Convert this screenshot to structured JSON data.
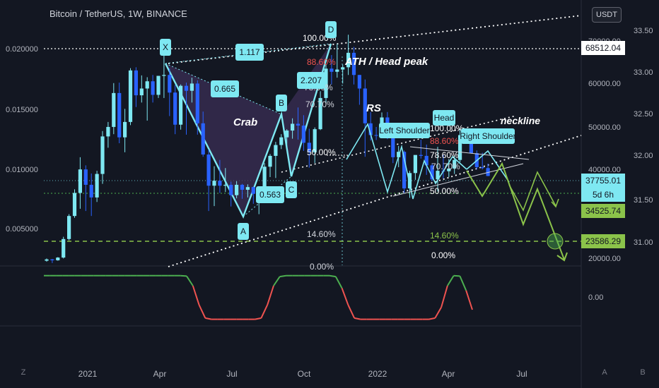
{
  "header": {
    "title": "Bitcoin / TetherUS, 1W, BINANCE",
    "currency": "USDT"
  },
  "corner": {
    "left": "Z",
    "right_a": "A",
    "right_b": "B"
  },
  "colors": {
    "background": "#131722",
    "up": "#7ee8f2",
    "down": "#2962ff",
    "pattern_fill": "#3b2f55",
    "crab_line": "#7ee8f2",
    "green_arrow": "#8bc34a",
    "indicator_up": "#4caf50",
    "indicator_down": "#ef5350",
    "fib_red": "#ef5350"
  },
  "chart_data": [
    {
      "type": "candlestick",
      "title": "Bitcoin / TetherUS, 1W, BINANCE",
      "x_tick_labels": [
        "2021",
        "Apr",
        "Jul",
        "Oct",
        "2022",
        "Apr",
        "Jul"
      ],
      "y_left_ticks": [
        "0.020000",
        "0.015000",
        "0.010000",
        "0.005000"
      ],
      "y_right_ticks": [
        "70000.00",
        "60000.00",
        "50000.00",
        "40000.00",
        "20000.00"
      ],
      "y_far_right_ticks": [
        "33.50",
        "33.00",
        "32.50",
        "32.00",
        "31.50",
        "31.00"
      ],
      "ylim": [
        18000,
        72000
      ],
      "price_labels": [
        {
          "value": "68512.04",
          "price": 68512,
          "style": "white"
        },
        {
          "value": "37755.01",
          "price": 37755,
          "style": "cyan"
        },
        {
          "value": "5d 6h",
          "price": 35500,
          "style": "cyan"
        },
        {
          "value": "34525.74",
          "price": 34526,
          "style": "green"
        },
        {
          "value": "23586.29",
          "price": 23586,
          "style": "green"
        }
      ],
      "pattern_points": {
        "X": {
          "date": "2021-04-12",
          "price": 64800,
          "label": "X"
        },
        "A": {
          "date": "2021-07-19",
          "price": 29300,
          "label": "A"
        },
        "B": {
          "date": "2021-09-06",
          "price": 52900,
          "label": "B"
        },
        "C": {
          "date": "2021-09-20",
          "price": 40000,
          "label": "C"
        },
        "D": {
          "date": "2021-11-08",
          "price": 69000,
          "label": "D"
        }
      },
      "ratio_labels": [
        "1.117",
        "0.665",
        "2.207",
        "0.563"
      ],
      "annotations": [
        "ATH / Head peak",
        "Crab",
        "RS",
        "Left Shoulder",
        "Head",
        "Right Shoulder",
        "neckline"
      ],
      "fib_levels_1": [
        "100.00%",
        "88.60%",
        "78.60%",
        "70.70%",
        "50.00%",
        "14.60%",
        "0.00%"
      ],
      "fib_levels_2": [
        "100.00%",
        "88.60%",
        "78.60%",
        "70.70%",
        "50.00%",
        "14.60%",
        "0.00%"
      ],
      "candles": [
        {
          "o": 19000,
          "h": 19500,
          "l": 18800,
          "c": 19300
        },
        {
          "o": 19300,
          "h": 19400,
          "l": 18500,
          "c": 19100
        },
        {
          "o": 19100,
          "h": 19800,
          "l": 19000,
          "c": 19700
        },
        {
          "o": 19700,
          "h": 24300,
          "l": 19500,
          "c": 23800
        },
        {
          "o": 23800,
          "h": 29300,
          "l": 23500,
          "c": 28900
        },
        {
          "o": 28900,
          "h": 34800,
          "l": 28500,
          "c": 34000
        },
        {
          "o": 34000,
          "h": 41900,
          "l": 30500,
          "c": 39200
        },
        {
          "o": 39200,
          "h": 40100,
          "l": 30000,
          "c": 35800
        },
        {
          "o": 35800,
          "h": 38300,
          "l": 28900,
          "c": 33000
        },
        {
          "o": 33000,
          "h": 38900,
          "l": 32000,
          "c": 38200
        },
        {
          "o": 38200,
          "h": 47700,
          "l": 36000,
          "c": 46500
        },
        {
          "o": 46500,
          "h": 49700,
          "l": 44000,
          "c": 48600
        },
        {
          "o": 48600,
          "h": 58300,
          "l": 47000,
          "c": 56100
        },
        {
          "o": 56100,
          "h": 58400,
          "l": 45000,
          "c": 46300
        },
        {
          "o": 46300,
          "h": 52600,
          "l": 43000,
          "c": 49700
        },
        {
          "o": 49700,
          "h": 61600,
          "l": 49000,
          "c": 61100
        },
        {
          "o": 61100,
          "h": 61800,
          "l": 53000,
          "c": 55600
        },
        {
          "o": 55600,
          "h": 60000,
          "l": 54000,
          "c": 57100
        },
        {
          "o": 57100,
          "h": 59600,
          "l": 50000,
          "c": 58700
        },
        {
          "o": 58700,
          "h": 60100,
          "l": 54000,
          "c": 55700
        },
        {
          "o": 55700,
          "h": 59900,
          "l": 55000,
          "c": 59900
        },
        {
          "o": 59900,
          "h": 64800,
          "l": 55000,
          "c": 60100
        },
        {
          "o": 60100,
          "h": 61500,
          "l": 51000,
          "c": 56200
        },
        {
          "o": 56200,
          "h": 57900,
          "l": 47000,
          "c": 49100
        },
        {
          "o": 49100,
          "h": 58000,
          "l": 48000,
          "c": 57700
        },
        {
          "o": 57700,
          "h": 58400,
          "l": 46900,
          "c": 56600
        },
        {
          "o": 56600,
          "h": 59500,
          "l": 54000,
          "c": 58200
        },
        {
          "o": 58200,
          "h": 58900,
          "l": 46900,
          "c": 49400
        },
        {
          "o": 49400,
          "h": 52000,
          "l": 42000,
          "c": 42500
        },
        {
          "o": 42500,
          "h": 43600,
          "l": 30000,
          "c": 35600
        },
        {
          "o": 35600,
          "h": 39900,
          "l": 31100,
          "c": 36700
        },
        {
          "o": 36700,
          "h": 41300,
          "l": 34000,
          "c": 35600
        },
        {
          "o": 35600,
          "h": 39500,
          "l": 34200,
          "c": 35800
        },
        {
          "o": 35800,
          "h": 36500,
          "l": 31000,
          "c": 33500
        },
        {
          "o": 33500,
          "h": 36600,
          "l": 32800,
          "c": 35800
        },
        {
          "o": 35800,
          "h": 36000,
          "l": 32700,
          "c": 34700
        },
        {
          "o": 34700,
          "h": 35900,
          "l": 33000,
          "c": 35300
        },
        {
          "o": 35300,
          "h": 35400,
          "l": 31600,
          "c": 33800
        },
        {
          "o": 33800,
          "h": 35000,
          "l": 29300,
          "c": 34200
        },
        {
          "o": 34200,
          "h": 40600,
          "l": 34000,
          "c": 39800
        },
        {
          "o": 39800,
          "h": 42600,
          "l": 37500,
          "c": 42200
        },
        {
          "o": 42200,
          "h": 45300,
          "l": 37300,
          "c": 44600
        },
        {
          "o": 44600,
          "h": 47000,
          "l": 43700,
          "c": 46300
        },
        {
          "o": 46300,
          "h": 48100,
          "l": 44000,
          "c": 47800
        },
        {
          "o": 47800,
          "h": 50500,
          "l": 46000,
          "c": 49300
        },
        {
          "o": 49300,
          "h": 52900,
          "l": 45800,
          "c": 48900
        },
        {
          "o": 48900,
          "h": 51200,
          "l": 43300,
          "c": 45100
        },
        {
          "o": 45100,
          "h": 48200,
          "l": 39600,
          "c": 43000
        },
        {
          "o": 43000,
          "h": 48500,
          "l": 40600,
          "c": 48100
        },
        {
          "o": 48100,
          "h": 56500,
          "l": 47900,
          "c": 55000
        },
        {
          "o": 55000,
          "h": 62500,
          "l": 54000,
          "c": 61500
        },
        {
          "o": 61500,
          "h": 64500,
          "l": 58000,
          "c": 60800
        },
        {
          "o": 60800,
          "h": 67000,
          "l": 59500,
          "c": 61300
        },
        {
          "o": 61300,
          "h": 62400,
          "l": 58200,
          "c": 61800
        },
        {
          "o": 61800,
          "h": 69000,
          "l": 60100,
          "c": 65000
        },
        {
          "o": 65000,
          "h": 66300,
          "l": 58000,
          "c": 60100
        },
        {
          "o": 60100,
          "h": 60100,
          "l": 53500,
          "c": 57100
        },
        {
          "o": 57100,
          "h": 59100,
          "l": 42000,
          "c": 49400
        },
        {
          "o": 49400,
          "h": 51900,
          "l": 45600,
          "c": 46800
        },
        {
          "o": 46800,
          "h": 48600,
          "l": 45700,
          "c": 46700
        },
        {
          "o": 46700,
          "h": 51800,
          "l": 46600,
          "c": 50700
        },
        {
          "o": 50700,
          "h": 51900,
          "l": 45900,
          "c": 46200
        },
        {
          "o": 46200,
          "h": 47500,
          "l": 40600,
          "c": 41900
        },
        {
          "o": 41900,
          "h": 44400,
          "l": 39700,
          "c": 43100
        },
        {
          "o": 43100,
          "h": 43400,
          "l": 34000,
          "c": 35000
        },
        {
          "o": 35000,
          "h": 38900,
          "l": 32900,
          "c": 38400
        },
        {
          "o": 38400,
          "h": 42200,
          "l": 36900,
          "c": 42400
        },
        {
          "o": 42400,
          "h": 45800,
          "l": 41600,
          "c": 42200
        },
        {
          "o": 42200,
          "h": 44700,
          "l": 38000,
          "c": 40100
        },
        {
          "o": 40100,
          "h": 40500,
          "l": 36600,
          "c": 37000
        },
        {
          "o": 37000,
          "h": 44200,
          "l": 34300,
          "c": 38900
        },
        {
          "o": 38900,
          "h": 42400,
          "l": 37200,
          "c": 38800
        },
        {
          "o": 38800,
          "h": 41500,
          "l": 37500,
          "c": 39400
        },
        {
          "o": 39400,
          "h": 42300,
          "l": 38200,
          "c": 41300
        },
        {
          "o": 41300,
          "h": 48200,
          "l": 40800,
          "c": 46800
        },
        {
          "o": 46800,
          "h": 47500,
          "l": 45000,
          "c": 46400
        },
        {
          "o": 46400,
          "h": 47200,
          "l": 42700,
          "c": 42800
        },
        {
          "o": 42800,
          "h": 43400,
          "l": 39200,
          "c": 39700
        },
        {
          "o": 39700,
          "h": 42900,
          "l": 39200,
          "c": 39500
        },
        {
          "o": 39500,
          "h": 40500,
          "l": 37700,
          "c": 37755
        }
      ],
      "indicator": {
        "y_tick": "0.00",
        "values": [
          0.92,
          0.92,
          0.92,
          0.92,
          0.92,
          0.92,
          0.92,
          0.92,
          0.92,
          0.92,
          0.92,
          0.92,
          0.92,
          0.92,
          0.92,
          0.92,
          0.92,
          0.92,
          0.92,
          0.92,
          0.92,
          0.92,
          0.92,
          0.9,
          0.5,
          -0.3,
          -0.85,
          -0.9,
          -0.9,
          -0.9,
          -0.9,
          -0.9,
          -0.9,
          -0.9,
          -0.9,
          -0.85,
          -0.3,
          0.5,
          0.88,
          0.92,
          0.92,
          0.92,
          0.92,
          0.92,
          0.92,
          0.92,
          0.92,
          0.88,
          0.4,
          -0.3,
          -0.85,
          -0.9,
          -0.9,
          -0.9,
          -0.9,
          -0.9,
          -0.9,
          -0.9,
          -0.9,
          -0.9,
          -0.9,
          -0.9,
          -0.9,
          -0.85,
          -0.4,
          0.5,
          0.92,
          0.9,
          0.3,
          -0.5
        ]
      }
    }
  ]
}
